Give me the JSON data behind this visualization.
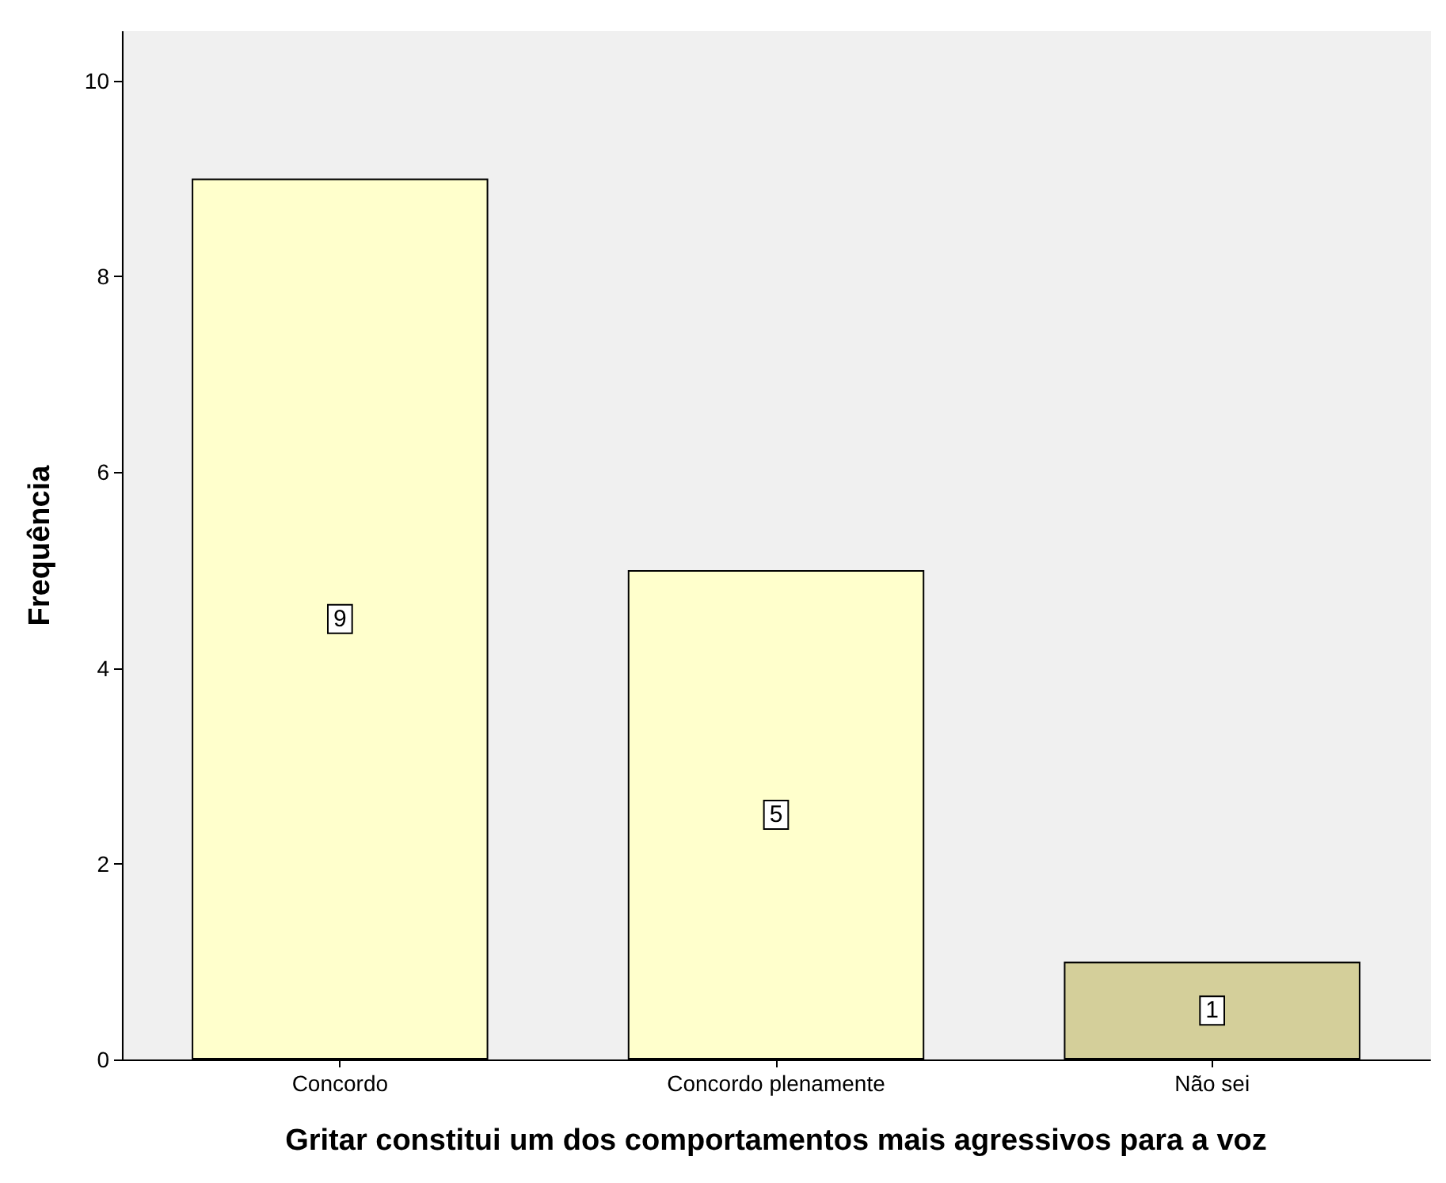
{
  "chart_data": {
    "type": "bar",
    "xlabel": "Gritar constitui um dos comportamentos mais agressivos para a voz",
    "ylabel": "Frequência",
    "categories": [
      "Concordo",
      "Concordo plenamente",
      "Não sei"
    ],
    "values": [
      9,
      5,
      1
    ],
    "colors": [
      "#ffffcc",
      "#ffffcc",
      "#d4cf9a"
    ],
    "ylim": [
      0,
      10.5
    ],
    "yticks": [
      0,
      2,
      4,
      6,
      8,
      10
    ],
    "grid": false,
    "data_labels": true
  }
}
